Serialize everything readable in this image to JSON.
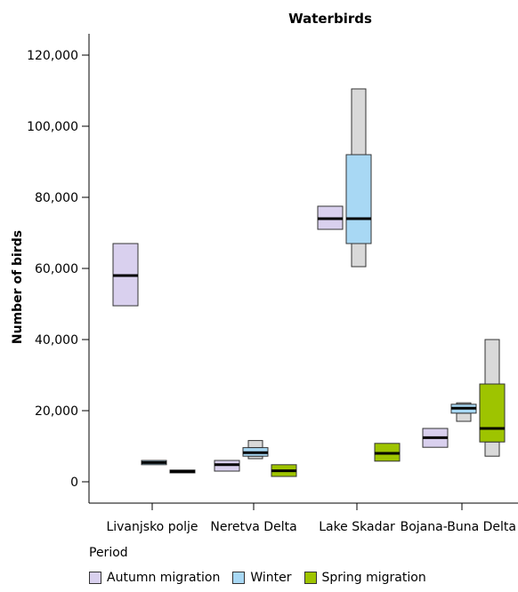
{
  "chart_data": {
    "type": "boxplot",
    "title": "Waterbirds",
    "xlabel": "",
    "ylabel": "Number of birds",
    "ylim": [
      -6000,
      126000
    ],
    "yticks": [
      0,
      20000,
      40000,
      60000,
      80000,
      100000,
      120000
    ],
    "ytick_labels": [
      "0",
      "20,000",
      "40,000",
      "60,000",
      "80,000",
      "100,000",
      "120,000"
    ],
    "categories": [
      "Livanjsko polje",
      "Neretva Delta",
      "Lake Skadar",
      "Bojana-Buna Delta"
    ],
    "legend": {
      "title": "Period",
      "position": "bottom"
    },
    "series": [
      {
        "name": "Autumn migration",
        "color": "#d9d0ee",
        "boxes": [
          {
            "category": "Livanjsko polje",
            "whisker_low": null,
            "q1": 49500,
            "median": 58000,
            "q3": 67000,
            "whisker_high": null
          },
          {
            "category": "Neretva Delta",
            "whisker_low": null,
            "q1": 3000,
            "median": 4800,
            "q3": 6000,
            "whisker_high": null
          },
          {
            "category": "Lake Skadar",
            "whisker_low": null,
            "q1": 71000,
            "median": 74000,
            "q3": 77500,
            "whisker_high": null
          },
          {
            "category": "Bojana-Buna Delta",
            "whisker_low": null,
            "q1": 9700,
            "median": 12400,
            "q3": 15000,
            "whisker_high": null
          }
        ]
      },
      {
        "name": "Winter",
        "color": "#a8d8f4",
        "boxes": [
          {
            "category": "Livanjsko polje",
            "whisker_low": null,
            "q1": 4800,
            "median": 5400,
            "q3": 6000,
            "whisker_high": null
          },
          {
            "category": "Neretva Delta",
            "whisker_low": 6500,
            "q1": 7200,
            "median": 8200,
            "q3": 9600,
            "whisker_high": 11600
          },
          {
            "category": "Lake Skadar",
            "whisker_low": 60500,
            "q1": 67000,
            "median": 74000,
            "q3": 92000,
            "whisker_high": 110500
          },
          {
            "category": "Bojana-Buna Delta",
            "whisker_low": 17000,
            "q1": 19300,
            "median": 20700,
            "q3": 21800,
            "whisker_high": 22200
          }
        ]
      },
      {
        "name": "Spring migration",
        "color": "#9ec400",
        "boxes": [
          {
            "category": "Livanjsko polje",
            "whisker_low": null,
            "q1": 2500,
            "median": 2900,
            "q3": 3300,
            "whisker_high": null
          },
          {
            "category": "Neretva Delta",
            "whisker_low": null,
            "q1": 1500,
            "median": 3100,
            "q3": 4800,
            "whisker_high": null
          },
          {
            "category": "Lake Skadar",
            "whisker_low": null,
            "q1": 5800,
            "median": 8000,
            "q3": 10800,
            "whisker_high": null
          },
          {
            "category": "Bojana-Buna Delta",
            "whisker_low": 7200,
            "q1": 11200,
            "median": 15000,
            "q3": 27500,
            "whisker_high": 40000
          }
        ]
      }
    ],
    "whisker_color": "#d9d9d9",
    "grid": false
  }
}
